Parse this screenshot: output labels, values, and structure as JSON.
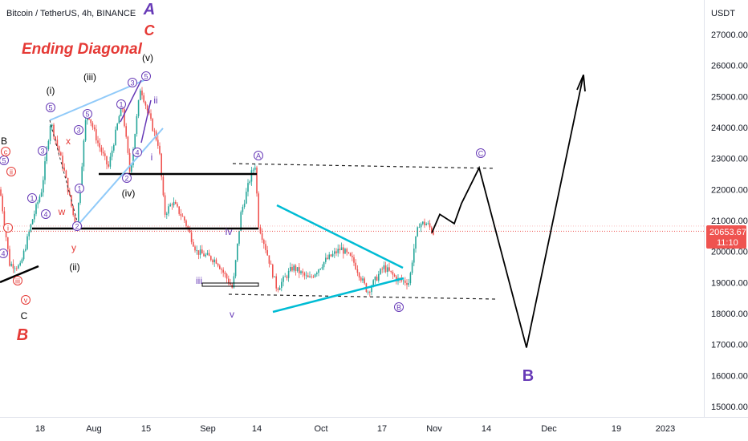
{
  "header": {
    "symbol_label": "Bitcoin / TetherUS, 4h, BINANCE"
  },
  "annotation_title": "Ending Diagonal",
  "price_axis": {
    "unit": "USDT",
    "ticks": [
      "27000.00",
      "26000.00",
      "25000.00",
      "24000.00",
      "23000.00",
      "22000.00",
      "21000.00",
      "20000.00",
      "19000.00",
      "18000.00",
      "17000.00",
      "16000.00",
      "15000.00"
    ],
    "tick_values": [
      27000,
      26000,
      25000,
      24000,
      23000,
      22000,
      21000,
      20000,
      19000,
      18000,
      17000,
      16000,
      15000
    ]
  },
  "last_price": {
    "value": "20653.67",
    "countdown": "11:10",
    "color": "#ef5350"
  },
  "time_axis": {
    "ticks": [
      "18",
      "Aug",
      "15",
      "Sep",
      "14",
      "Oct",
      "17",
      "Nov",
      "14",
      "Dec",
      "19",
      "2023"
    ]
  },
  "colors": {
    "up": "#26a69a",
    "down": "#ef5350",
    "projection": "#000000",
    "wave_purple": "#673ab7",
    "wave_red": "#e53935",
    "triangle": "#00bcd4",
    "diagonal": "#90caf9",
    "level": "#000000"
  },
  "chart_data": {
    "type": "candlestick",
    "title": "Bitcoin / TetherUS, 4h, BINANCE",
    "ylabel": "USDT",
    "ylim": [
      14700,
      27900
    ],
    "x_tick_labels": [
      "18",
      "Aug",
      "15",
      "Sep",
      "14",
      "Oct",
      "17",
      "Nov",
      "14",
      "Dec",
      "19",
      "2023"
    ],
    "horizontal_levels": [
      22500,
      20740
    ],
    "last_price": 20653.67,
    "projection_path": [
      20600,
      21200,
      20900,
      21550,
      22700,
      16900,
      25700
    ],
    "labels": {
      "degree_letters": [
        "A",
        "C",
        "B",
        "B"
      ],
      "minor_roman": [
        "(i)",
        "(ii)",
        "(iii)",
        "(iv)",
        "(v)"
      ],
      "minute_roman": [
        "i",
        "ii",
        "iii",
        "iv",
        "v"
      ],
      "circled_abc": [
        "A",
        "B",
        "C"
      ],
      "circled_numbers": [
        "1",
        "2",
        "3",
        "4",
        "5"
      ],
      "wxy": [
        "w",
        "x",
        "y"
      ],
      "old_letters": [
        "B",
        "C"
      ]
    }
  }
}
